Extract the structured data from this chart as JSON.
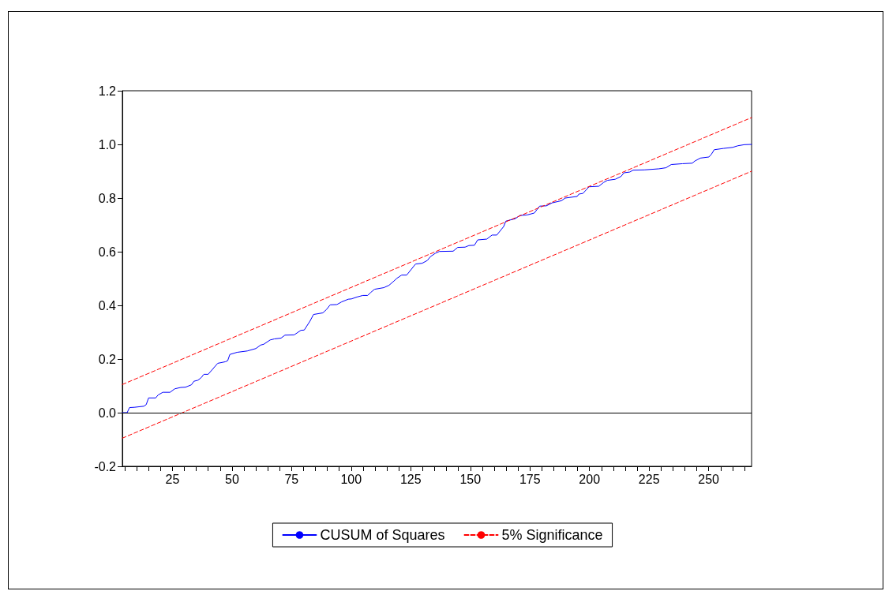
{
  "chart_data": {
    "type": "line",
    "marker": "none",
    "grid": false,
    "legend": "bottom",
    "xlim": [
      4,
      268
    ],
    "xticks": [
      {
        "value": 5,
        "label": null
      },
      {
        "value": 10,
        "label": null
      },
      {
        "value": 15,
        "label": null
      },
      {
        "value": 20,
        "label": null
      },
      25,
      {
        "value": 30,
        "label": null
      },
      {
        "value": 35,
        "label": null
      },
      {
        "value": 40,
        "label": null
      },
      {
        "value": 45,
        "label": null
      },
      50,
      {
        "value": 55,
        "label": null
      },
      {
        "value": 60,
        "label": null
      },
      {
        "value": 65,
        "label": null
      },
      {
        "value": 70,
        "label": null
      },
      75,
      {
        "value": 80,
        "label": null
      },
      {
        "value": 85,
        "label": null
      },
      {
        "value": 90,
        "label": null
      },
      {
        "value": 95,
        "label": null
      },
      100,
      {
        "value": 105,
        "label": null
      },
      {
        "value": 110,
        "label": null
      },
      {
        "value": 115,
        "label": null
      },
      {
        "value": 120,
        "label": null
      },
      125,
      {
        "value": 130,
        "label": null
      },
      {
        "value": 135,
        "label": null
      },
      {
        "value": 140,
        "label": null
      },
      {
        "value": 145,
        "label": null
      },
      150,
      {
        "value": 155,
        "label": null
      },
      {
        "value": 160,
        "label": null
      },
      {
        "value": 165,
        "label": null
      },
      {
        "value": 170,
        "label": null
      },
      175,
      {
        "value": 180,
        "label": null
      },
      {
        "value": 185,
        "label": null
      },
      {
        "value": 190,
        "label": null
      },
      {
        "value": 195,
        "label": null
      },
      200,
      {
        "value": 205,
        "label": null
      },
      {
        "value": 210,
        "label": null
      },
      {
        "value": 215,
        "label": null
      },
      {
        "value": 220,
        "label": null
      },
      225,
      {
        "value": 230,
        "label": null
      },
      {
        "value": 235,
        "label": null
      },
      {
        "value": 240,
        "label": null
      },
      {
        "value": 245,
        "label": null
      },
      250,
      {
        "value": 255,
        "label": null
      },
      {
        "value": 260,
        "label": null
      },
      {
        "value": 265,
        "label": null
      }
    ],
    "ylim": [
      -0.2,
      1.2
    ],
    "yticks": [
      {
        "value": -0.2,
        "label": "-0.2"
      },
      {
        "value": 0,
        "label": "0.0"
      },
      {
        "value": 0.2,
        "label": "0.2"
      },
      {
        "value": 0.4,
        "label": "0.4"
      },
      {
        "value": 0.6,
        "label": "0.6"
      },
      {
        "value": 0.8,
        "label": "0.8"
      },
      {
        "value": 1,
        "label": "1.0"
      },
      {
        "value": 1.2,
        "label": "1.2"
      }
    ],
    "ref_lines": [
      {
        "axis": "y",
        "value": 0,
        "label": null,
        "color": "#000000"
      }
    ],
    "series": [
      {
        "name": "CUSUM of Squares",
        "color": "#0000ff",
        "line_style": "solid",
        "x": [
          4,
          6,
          7,
          9,
          13,
          14,
          15,
          18,
          19,
          21,
          24,
          26,
          28.5,
          30.5,
          33,
          34,
          35.7,
          37,
          38.2,
          40,
          44,
          47.3,
          48.2,
          49.1,
          52.1,
          56.4,
          60,
          62,
          63.3,
          66,
          67.8,
          70.6,
          72.2,
          76.1,
          78.9,
          80.3,
          82.7,
          84.2,
          88.1,
          89.6,
          91.2,
          94,
          96,
          98.8,
          100.1,
          102.4,
          104.9,
          106.9,
          108.2,
          109.8,
          113.7,
          115.9,
          117.6,
          119.2,
          121.2,
          123.3,
          127,
          129.8,
          131.9,
          133.3,
          135.3,
          137,
          142.8,
          144.7,
          147.8,
          149.4,
          151.7,
          153.1,
          156.9,
          159.1,
          161.1,
          164,
          164.9,
          168.8,
          170.8,
          173.8,
          176.8,
          179.1,
          181.9,
          184.3,
          188.2,
          189.8,
          194.8,
          195.6,
          197.2,
          199.8,
          203.9,
          205.9,
          207.5,
          210.8,
          213.3,
          214.4,
          216.9,
          218.3,
          223,
          229.1,
          232.1,
          234.3,
          239,
          243.1,
          244.2,
          246.5,
          250.1,
          251.2,
          252.3,
          256.2,
          260.1,
          262.3,
          265,
          268
        ],
        "values": [
          0,
          0,
          0.019,
          0.02,
          0.024,
          0.03,
          0.055,
          0.055,
          0.066,
          0.076,
          0.076,
          0.089,
          0.094,
          0.095,
          0.104,
          0.117,
          0.121,
          0.13,
          0.143,
          0.143,
          0.184,
          0.19,
          0.194,
          0.217,
          0.225,
          0.23,
          0.239,
          0.252,
          0.255,
          0.271,
          0.275,
          0.278,
          0.289,
          0.29,
          0.307,
          0.308,
          0.341,
          0.366,
          0.372,
          0.384,
          0.402,
          0.403,
          0.413,
          0.423,
          0.424,
          0.431,
          0.437,
          0.437,
          0.448,
          0.46,
          0.466,
          0.475,
          0.488,
          0.501,
          0.513,
          0.513,
          0.554,
          0.557,
          0.567,
          0.582,
          0.594,
          0.601,
          0.602,
          0.616,
          0.617,
          0.623,
          0.624,
          0.644,
          0.647,
          0.662,
          0.662,
          0.694,
          0.714,
          0.723,
          0.735,
          0.737,
          0.744,
          0.77,
          0.771,
          0.782,
          0.79,
          0.8,
          0.806,
          0.815,
          0.817,
          0.842,
          0.844,
          0.858,
          0.866,
          0.87,
          0.881,
          0.894,
          0.897,
          0.904,
          0.905,
          0.909,
          0.913,
          0.925,
          0.928,
          0.93,
          0.938,
          0.949,
          0.953,
          0.964,
          0.98,
          0.985,
          0.989,
          0.995,
          0.999,
          1
        ]
      },
      {
        "name": "5% Significance",
        "color": "#ff0000",
        "line_style": "dashed",
        "x": [
          4,
          268
        ],
        "values": [
          0.105,
          1.1
        ]
      },
      {
        "color": "#ff0000",
        "line_style": "dashed",
        "x": [
          4,
          268
        ],
        "values": [
          -0.095,
          0.9
        ]
      }
    ]
  }
}
